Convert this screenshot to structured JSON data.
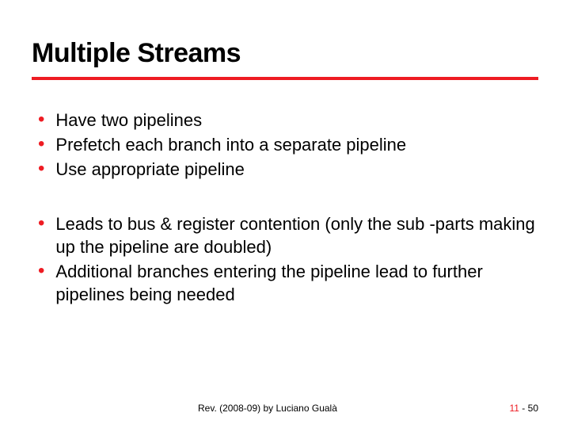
{
  "title": "Multiple Streams",
  "divider_color": "#ee1c23",
  "bullet_color": "#ee1c23",
  "text_color": "#000000",
  "background_color": "#ffffff",
  "title_fontsize": 34,
  "body_fontsize": 22,
  "footer_fontsize": 12,
  "groups": {
    "g1": {
      "b0": "Have two pipelines",
      "b1": "Prefetch each branch into a separate pipeline",
      "b2": "Use appropriate pipeline"
    },
    "g2": {
      "b0": "Leads to bus & register contention (only the sub -parts making up the pipeline are doubled)",
      "b1": "Additional branches entering the pipeline lead to further pipelines being needed"
    }
  },
  "footer": {
    "revision": "Rev. (2008-09) by Luciano Gualà",
    "chapter": "11",
    "sep": " - ",
    "page": "50"
  }
}
